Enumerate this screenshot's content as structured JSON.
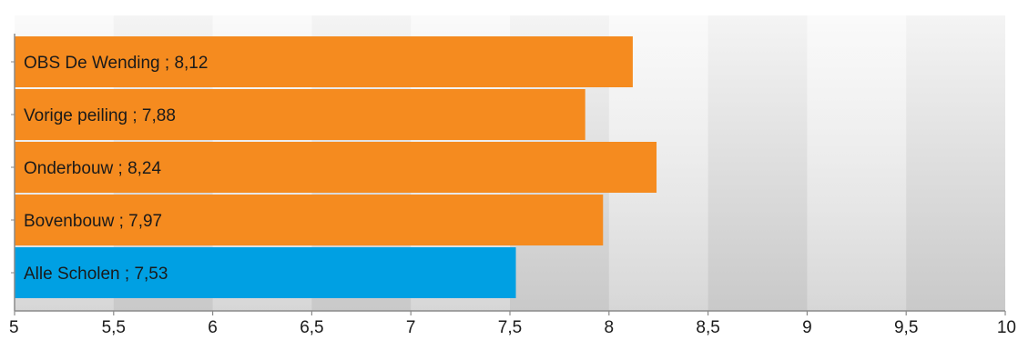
{
  "chart_data": {
    "type": "bar",
    "orientation": "horizontal",
    "categories": [
      "OBS De Wending",
      "Vorige peiling",
      "Onderbouw",
      "Bovenbouw",
      "Alle Scholen"
    ],
    "values": [
      8.12,
      7.88,
      8.24,
      7.97,
      7.53
    ],
    "data_labels": [
      "OBS De Wending ; 8,12",
      "Vorige peiling ; 7,88",
      "Onderbouw ; 8,24",
      "Bovenbouw ; 7,97",
      "Alle Scholen ; 7,53"
    ],
    "bar_colors": [
      "#f58b1f",
      "#f58b1f",
      "#f58b1f",
      "#f58b1f",
      "#00a0e3"
    ],
    "xlim": [
      5,
      10
    ],
    "xticks": [
      5,
      5.5,
      6,
      6.5,
      7,
      7.5,
      8,
      8.5,
      9,
      9.5,
      10
    ],
    "xtick_labels": [
      "5",
      "5,5",
      "6",
      "6,5",
      "7",
      "7,5",
      "8",
      "8,5",
      "9",
      "9,5",
      "10"
    ],
    "title": "",
    "xlabel": "",
    "ylabel": "",
    "grid": "vertical bands",
    "legend": "none"
  }
}
